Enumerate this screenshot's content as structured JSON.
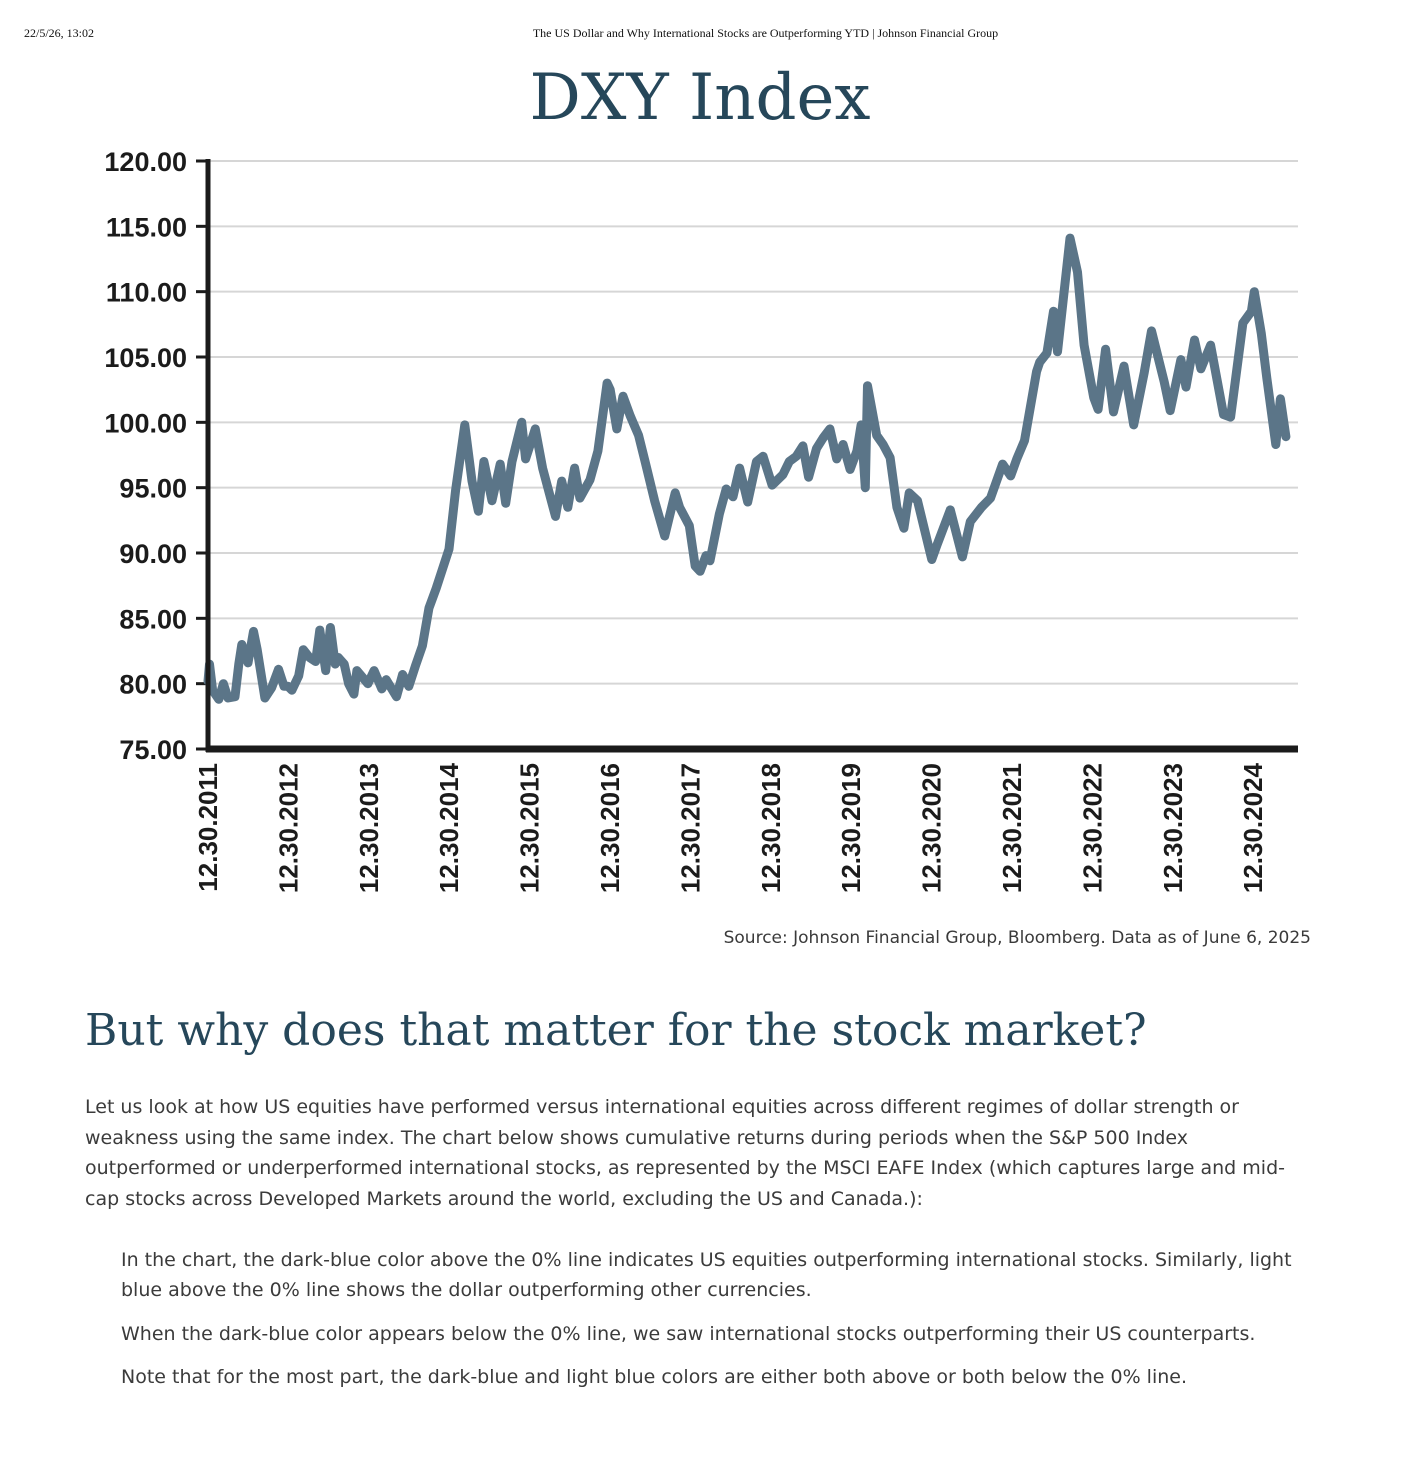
{
  "print_header": {
    "datetime": "22/5/26, 13:02",
    "page_title": "The US Dollar and Why International Stocks are Outperforming YTD | Johnson Financial Group"
  },
  "colors": {
    "line": "#5b7588",
    "axis": "#1b1b1b",
    "grid": "#d6d6d6",
    "title": "#26475a"
  },
  "chart_data": {
    "type": "line",
    "title": "DXY Index",
    "source_note": "Source: Johnson Financial Group, Bloomberg. Data as of June 6, 2025",
    "xlabel": "",
    "ylabel": "",
    "ylim": [
      75,
      120
    ],
    "xlim": [
      "2011-12-30",
      "2025-06-06"
    ],
    "grid": true,
    "y_ticks": [
      "75.00",
      "80.00",
      "85.00",
      "90.00",
      "95.00",
      "100.00",
      "105.00",
      "110.00",
      "115.00",
      "120.00"
    ],
    "x_ticks": [
      "12.30.2011",
      "12.30.2012",
      "12.30.2013",
      "12.30.2014",
      "12.30.2015",
      "12.30.2016",
      "12.30.2017",
      "12.30.2018",
      "12.30.2019",
      "12.30.2020",
      "12.30.2021",
      "12.30.2022",
      "12.30.2023",
      "12.30.2024"
    ],
    "series": [
      {
        "values": [
          [
            "2011-12-30",
            80.2
          ],
          [
            "2012-01-06",
            81.5
          ],
          [
            "2012-01-20",
            79.5
          ],
          [
            "2012-02-17",
            78.8
          ],
          [
            "2012-03-09",
            80.0
          ],
          [
            "2012-03-30",
            78.9
          ],
          [
            "2012-05-01",
            79.0
          ],
          [
            "2012-05-18",
            81.5
          ],
          [
            "2012-06-01",
            83.0
          ],
          [
            "2012-06-29",
            81.6
          ],
          [
            "2012-07-24",
            84.0
          ],
          [
            "2012-08-10",
            82.6
          ],
          [
            "2012-09-14",
            78.9
          ],
          [
            "2012-10-15",
            79.7
          ],
          [
            "2012-11-15",
            81.1
          ],
          [
            "2012-12-10",
            79.8
          ],
          [
            "2012-12-28",
            79.8
          ],
          [
            "2013-01-15",
            79.5
          ],
          [
            "2013-02-15",
            80.6
          ],
          [
            "2013-03-08",
            82.6
          ],
          [
            "2013-04-05",
            82.0
          ],
          [
            "2013-05-03",
            81.7
          ],
          [
            "2013-05-22",
            84.1
          ],
          [
            "2013-06-18",
            81.0
          ],
          [
            "2013-07-09",
            84.3
          ],
          [
            "2013-07-31",
            81.5
          ],
          [
            "2013-08-14",
            82.0
          ],
          [
            "2013-09-10",
            81.5
          ],
          [
            "2013-09-30",
            80.0
          ],
          [
            "2013-10-24",
            79.2
          ],
          [
            "2013-11-07",
            81.0
          ],
          [
            "2013-12-27",
            80.0
          ],
          [
            "2014-01-24",
            81.0
          ],
          [
            "2014-02-28",
            79.6
          ],
          [
            "2014-03-20",
            80.3
          ],
          [
            "2014-05-06",
            79.0
          ],
          [
            "2014-06-03",
            80.7
          ],
          [
            "2014-07-01",
            79.8
          ],
          [
            "2014-08-01",
            81.4
          ],
          [
            "2014-09-01",
            82.9
          ],
          [
            "2014-10-01",
            85.8
          ],
          [
            "2014-11-03",
            87.3
          ],
          [
            "2014-12-31",
            90.3
          ],
          [
            "2015-01-30",
            94.8
          ],
          [
            "2015-03-13",
            99.8
          ],
          [
            "2015-04-15",
            95.5
          ],
          [
            "2015-05-14",
            93.2
          ],
          [
            "2015-06-08",
            97.0
          ],
          [
            "2015-07-15",
            94.0
          ],
          [
            "2015-08-21",
            96.8
          ],
          [
            "2015-09-15",
            93.8
          ],
          [
            "2015-10-14",
            97.0
          ],
          [
            "2015-11-27",
            100.0
          ],
          [
            "2015-12-15",
            97.2
          ],
          [
            "2016-01-28",
            99.5
          ],
          [
            "2016-03-01",
            96.5
          ],
          [
            "2016-04-29",
            92.8
          ],
          [
            "2016-05-27",
            95.5
          ],
          [
            "2016-06-24",
            93.5
          ],
          [
            "2016-07-25",
            96.5
          ],
          [
            "2016-08-18",
            94.2
          ],
          [
            "2016-10-03",
            95.6
          ],
          [
            "2016-11-08",
            97.8
          ],
          [
            "2016-12-20",
            103.0
          ],
          [
            "2017-01-03",
            102.5
          ],
          [
            "2017-02-02",
            99.5
          ],
          [
            "2017-03-02",
            102.0
          ],
          [
            "2017-04-04",
            100.5
          ],
          [
            "2017-05-12",
            99.0
          ],
          [
            "2017-06-12",
            96.9
          ],
          [
            "2017-07-24",
            94.0
          ],
          [
            "2017-09-08",
            91.3
          ],
          [
            "2017-10-26",
            94.6
          ],
          [
            "2017-11-15",
            93.5
          ],
          [
            "2017-12-29",
            92.1
          ],
          [
            "2018-01-25",
            89.0
          ],
          [
            "2018-02-16",
            88.6
          ],
          [
            "2018-03-15",
            89.8
          ],
          [
            "2018-04-02",
            89.4
          ],
          [
            "2018-05-15",
            93.0
          ],
          [
            "2018-06-15",
            94.9
          ],
          [
            "2018-07-16",
            94.3
          ],
          [
            "2018-08-15",
            96.5
          ],
          [
            "2018-09-21",
            93.9
          ],
          [
            "2018-10-31",
            97.0
          ],
          [
            "2018-11-30",
            97.4
          ],
          [
            "2019-01-10",
            95.2
          ],
          [
            "2019-02-28",
            96.0
          ],
          [
            "2019-03-29",
            97.0
          ],
          [
            "2019-04-30",
            97.4
          ],
          [
            "2019-05-30",
            98.2
          ],
          [
            "2019-06-25",
            95.8
          ],
          [
            "2019-07-31",
            98.0
          ],
          [
            "2019-08-30",
            98.8
          ],
          [
            "2019-09-30",
            99.5
          ],
          [
            "2019-10-31",
            97.2
          ],
          [
            "2019-11-29",
            98.3
          ],
          [
            "2019-12-31",
            96.4
          ],
          [
            "2020-01-31",
            97.8
          ],
          [
            "2020-02-19",
            99.8
          ],
          [
            "2020-03-09",
            95.0
          ],
          [
            "2020-03-19",
            102.8
          ],
          [
            "2020-04-30",
            99.0
          ],
          [
            "2020-05-29",
            98.3
          ],
          [
            "2020-06-30",
            97.3
          ],
          [
            "2020-07-31",
            93.5
          ],
          [
            "2020-09-01",
            91.9
          ],
          [
            "2020-09-25",
            94.6
          ],
          [
            "2020-11-02",
            94.0
          ],
          [
            "2020-12-31",
            89.9
          ],
          [
            "2021-01-06",
            89.5
          ],
          [
            "2021-01-29",
            90.6
          ],
          [
            "2021-03-31",
            93.3
          ],
          [
            "2021-05-25",
            89.7
          ],
          [
            "2021-06-30",
            92.4
          ],
          [
            "2021-08-20",
            93.5
          ],
          [
            "2021-09-30",
            94.2
          ],
          [
            "2021-11-24",
            96.8
          ],
          [
            "2021-12-31",
            95.9
          ],
          [
            "2022-01-28",
            97.2
          ],
          [
            "2022-03-04",
            98.6
          ],
          [
            "2022-04-28",
            103.9
          ],
          [
            "2022-05-12",
            104.6
          ],
          [
            "2022-06-14",
            105.3
          ],
          [
            "2022-07-14",
            108.5
          ],
          [
            "2022-08-01",
            105.4
          ],
          [
            "2022-09-27",
            114.1
          ],
          [
            "2022-10-31",
            111.5
          ],
          [
            "2022-11-30",
            105.9
          ],
          [
            "2023-01-13",
            101.9
          ],
          [
            "2023-02-02",
            101.0
          ],
          [
            "2023-03-08",
            105.6
          ],
          [
            "2023-04-13",
            100.8
          ],
          [
            "2023-05-31",
            104.3
          ],
          [
            "2023-07-14",
            99.8
          ],
          [
            "2023-08-31",
            103.8
          ],
          [
            "2023-10-03",
            107.0
          ],
          [
            "2023-11-30",
            103.1
          ],
          [
            "2023-12-27",
            100.9
          ],
          [
            "2024-02-14",
            104.8
          ],
          [
            "2024-03-08",
            102.7
          ],
          [
            "2024-04-16",
            106.3
          ],
          [
            "2024-05-15",
            104.1
          ],
          [
            "2024-06-28",
            105.9
          ],
          [
            "2024-08-26",
            100.6
          ],
          [
            "2024-09-27",
            100.4
          ],
          [
            "2024-11-22",
            107.6
          ],
          [
            "2024-12-31",
            108.5
          ],
          [
            "2025-01-13",
            110.0
          ],
          [
            "2025-02-14",
            106.8
          ],
          [
            "2025-03-11",
            103.4
          ],
          [
            "2025-04-21",
            98.3
          ],
          [
            "2025-05-12",
            101.8
          ],
          [
            "2025-06-06",
            98.9
          ]
        ]
      }
    ]
  },
  "article": {
    "heading": "But why does that matter for the stock market?",
    "lead": "Let us look at how US equities have performed versus international equities across different regimes of dollar strength or weakness using the same index. The chart below shows cumulative returns during periods when the S&P 500 Index outperformed or underperformed international stocks, as represented by the MSCI EAFE Index (which captures large and mid-cap stocks across Developed Markets around the world, excluding the US and Canada.):",
    "quote": [
      "In the chart, the dark-blue color above the 0% line indicates US equities outperforming international stocks. Similarly, light blue above the 0% line shows the dollar outperforming other currencies.",
      "When the dark-blue color appears below the 0% line, we saw international stocks outperforming their US counterparts.",
      "Note that for the most part, the dark-blue and light blue colors are either both above or both below the 0% line."
    ]
  }
}
